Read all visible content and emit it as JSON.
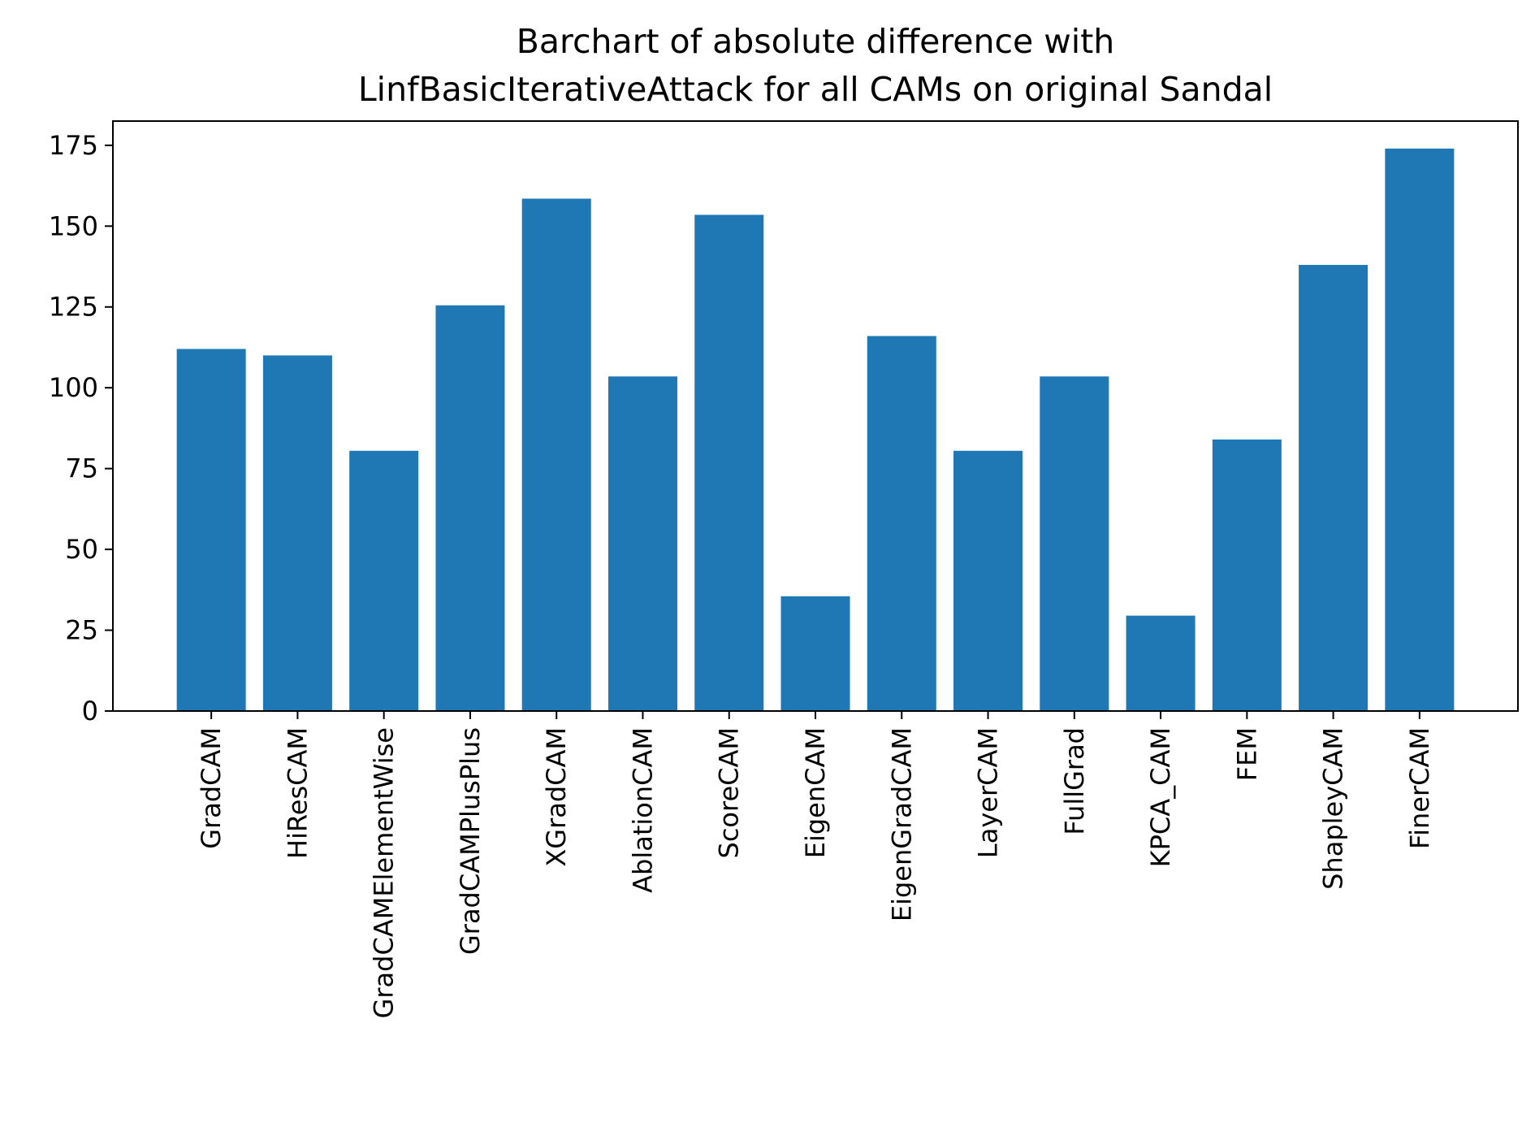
{
  "chart_data": {
    "type": "bar",
    "title_lines": [
      "Barchart of absolute difference with",
      "LinfBasicIterativeAttack for all CAMs on original Sandal"
    ],
    "xlabel": "",
    "ylabel": "",
    "categories": [
      "GradCAM",
      "HiResCAM",
      "GradCAMElementWise",
      "GradCAMPlusPlus",
      "XGradCAM",
      "AblationCAM",
      "ScoreCAM",
      "EigenCAM",
      "EigenGradCAM",
      "LayerCAM",
      "FullGrad",
      "KPCA_CAM",
      "FEM",
      "ShapleyCAM",
      "FinerCAM"
    ],
    "values": [
      112,
      110,
      80.5,
      125.5,
      158.5,
      103.5,
      153.5,
      35.5,
      116,
      80.5,
      103.5,
      29.5,
      84,
      138,
      174
    ],
    "ylim": [
      0,
      182.5
    ],
    "yticks": [
      0,
      25,
      50,
      75,
      100,
      125,
      150,
      175
    ],
    "bar_color": "#1f77b4",
    "grid": false,
    "legend": "none"
  }
}
